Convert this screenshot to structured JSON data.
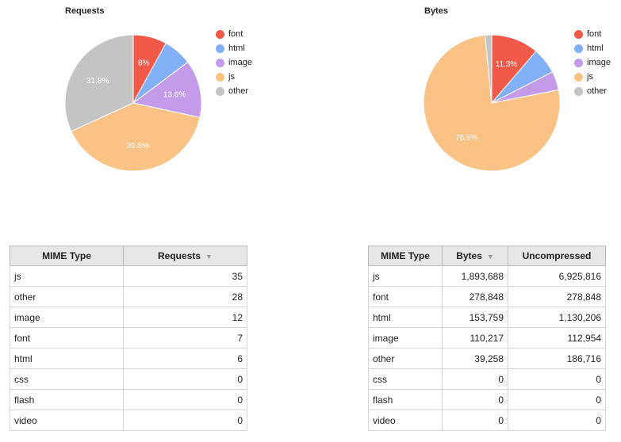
{
  "colors": {
    "font": "#f15a48",
    "html": "#81b0f6",
    "image": "#c39be8",
    "js": "#fac385",
    "other": "#c4c4c4"
  },
  "charts": {
    "requests": {
      "title": "Requests",
      "legend": [
        "font",
        "html",
        "image",
        "js",
        "other"
      ]
    },
    "bytes": {
      "title": "Bytes",
      "legend": [
        "font",
        "html",
        "image",
        "js",
        "other"
      ]
    }
  },
  "chart_data": [
    {
      "type": "pie",
      "title": "Requests",
      "labels": [
        "font",
        "html",
        "image",
        "js",
        "other"
      ],
      "values": [
        7,
        6,
        12,
        35,
        28
      ],
      "slice_labels": [
        "8%",
        "",
        "13.6%",
        "39.8%",
        "31.8%"
      ]
    },
    {
      "type": "pie",
      "title": "Bytes",
      "labels": [
        "font",
        "html",
        "image",
        "js",
        "other"
      ],
      "values": [
        278848,
        153759,
        110217,
        1893688,
        39258
      ],
      "slice_labels": [
        "11.3%",
        "",
        "",
        "76.5%",
        ""
      ]
    }
  ],
  "requests_table": {
    "headers": [
      "MIME Type",
      "Requests"
    ],
    "sort_indicator": "▼",
    "rows": [
      [
        "js",
        "35"
      ],
      [
        "other",
        "28"
      ],
      [
        "image",
        "12"
      ],
      [
        "font",
        "7"
      ],
      [
        "html",
        "6"
      ],
      [
        "css",
        "0"
      ],
      [
        "flash",
        "0"
      ],
      [
        "video",
        "0"
      ]
    ]
  },
  "bytes_table": {
    "headers": [
      "MIME Type",
      "Bytes",
      "Uncompressed"
    ],
    "sort_indicator": "▼",
    "rows": [
      [
        "js",
        "1,893,688",
        "6,925,816"
      ],
      [
        "font",
        "278,848",
        "278,848"
      ],
      [
        "html",
        "153,759",
        "1,130,206"
      ],
      [
        "image",
        "110,217",
        "112,954"
      ],
      [
        "other",
        "39,258",
        "186,716"
      ],
      [
        "css",
        "0",
        "0"
      ],
      [
        "flash",
        "0",
        "0"
      ],
      [
        "video",
        "0",
        "0"
      ]
    ]
  }
}
